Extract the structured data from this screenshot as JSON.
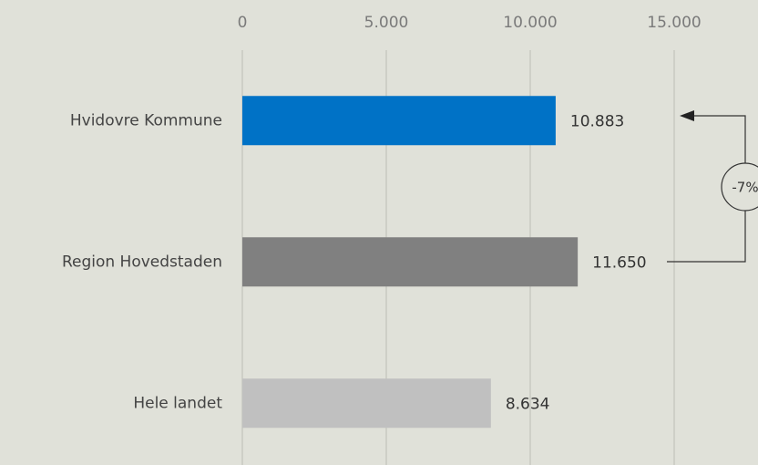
{
  "chart_data": {
    "type": "bar",
    "orientation": "horizontal",
    "categories": [
      "Hvidovre Kommune",
      "Region Hovedstaden",
      "Hele landet"
    ],
    "values": [
      10883,
      11650,
      8634
    ],
    "value_labels": [
      "10.883",
      "11.650",
      "8.634"
    ],
    "colors": [
      "#0072c6",
      "#808080",
      "#c0c0c0"
    ],
    "xlim": [
      0,
      15000
    ],
    "xticks": [
      0,
      {
        "value": 5000,
        "label": "5.000"
      },
      {
        "value": 10000,
        "label": "10.000"
      },
      {
        "value": 15000,
        "label": "15.000"
      }
    ],
    "grid": true,
    "annotation": "-7%"
  }
}
